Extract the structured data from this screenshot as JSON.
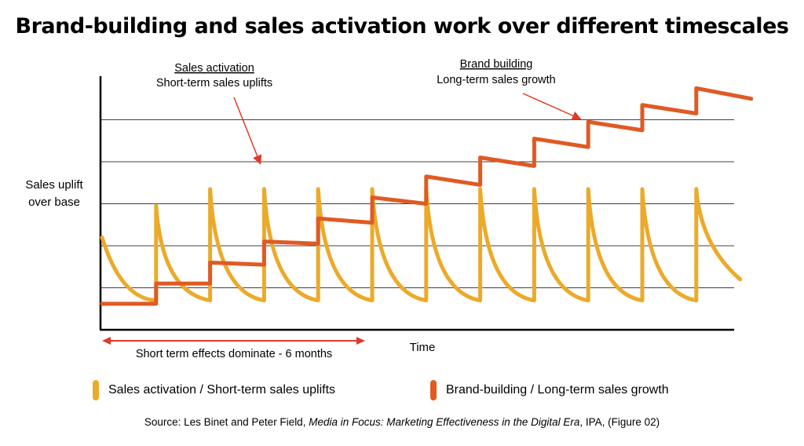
{
  "title": "Brand-building and sales activation work over different timescales",
  "chart_data": {
    "type": "line",
    "xlabel": "Time",
    "ylabel_lines": [
      "Sales uplift",
      "over base"
    ],
    "grid": true,
    "ylim": [
      0,
      6
    ],
    "gridlines": [
      1,
      2,
      3,
      4,
      5
    ],
    "x": [
      0,
      1,
      2,
      3,
      4,
      5,
      6,
      7,
      8,
      9,
      10,
      11,
      12
    ],
    "series": [
      {
        "name": "Sales activation / Short-term sales uplifts",
        "color": "#EBAA2A",
        "start_level": 2.2,
        "peak_level": 3.35,
        "peaks_at_x": [
          1,
          2,
          3,
          4,
          5,
          6,
          7,
          8,
          9,
          10,
          11
        ],
        "peak_overrides": {
          "1": 2.95,
          "2": 3.35,
          "3": 3.35
        },
        "trough_level": 0.7,
        "end_level": 1.2
      },
      {
        "name": "Brand-building / Long-term sales growth",
        "color": "#E05A23",
        "step_x": [
          1,
          2,
          3,
          4,
          5,
          6,
          7,
          8,
          9,
          10,
          11
        ],
        "levels_start": [
          0.62,
          1.1,
          1.6,
          2.1,
          2.65,
          3.15,
          3.65,
          4.1,
          4.55,
          4.95,
          5.35,
          5.75
        ],
        "levels_end": [
          0.62,
          1.1,
          1.55,
          2.05,
          2.55,
          3.0,
          3.45,
          3.9,
          4.35,
          4.75,
          5.15,
          5.5
        ]
      }
    ],
    "annotations": [
      {
        "heading": "Sales activation",
        "text": "Short-term sales uplifts"
      },
      {
        "heading": "Brand building",
        "text": "Long-term sales growth"
      }
    ],
    "range_label": "Short term effects dominate - 6 months"
  },
  "legend": [
    {
      "label": "Sales activation / Short-term sales uplifts",
      "color": "#EBAA2A"
    },
    {
      "label": "Brand-building / Long-term sales growth",
      "color": "#E05A23"
    }
  ],
  "source": {
    "prefix": "Source: Les Binet and Peter Field, ",
    "italic": "Media in Focus: Marketing Effectiveness in the Digital Era",
    "suffix": ", IPA, (Figure 02)"
  }
}
